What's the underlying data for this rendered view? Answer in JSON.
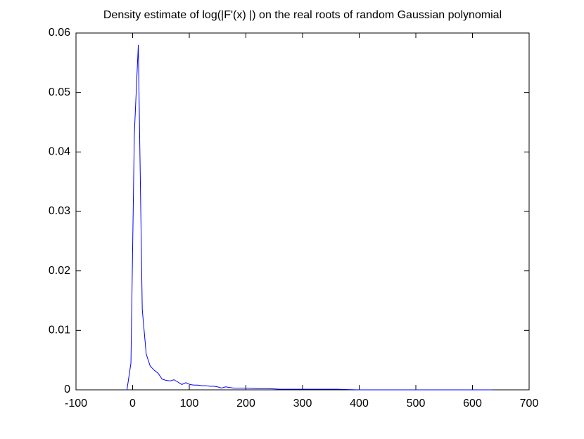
{
  "chart_data": {
    "type": "line",
    "title": "Density estimate of log(|F'(x) |) on the real roots of random Gaussian polynomial",
    "x": [
      -10,
      -3,
      3,
      10,
      17,
      24,
      31,
      38,
      45,
      52,
      59,
      66,
      73,
      80,
      87,
      94,
      101,
      108,
      115,
      122,
      129,
      136,
      143,
      150,
      157,
      164,
      171,
      178,
      185,
      200,
      220,
      240,
      260,
      280,
      300,
      330,
      360,
      400,
      450,
      500,
      550,
      600,
      635
    ],
    "series": [
      {
        "color": "#0000ff",
        "values": [
          0,
          0.0045,
          0.043,
          0.058,
          0.0135,
          0.006,
          0.004,
          0.0033,
          0.0028,
          0.0018,
          0.0016,
          0.0015,
          0.0017,
          0.0013,
          0.0009,
          0.0012,
          0.0009,
          0.0008,
          0.0008,
          0.0007,
          0.0007,
          0.0006,
          0.0006,
          0.0005,
          0.0003,
          0.0005,
          0.0004,
          0.0003,
          0.0003,
          0.0003,
          0.0002,
          0.0002,
          0.0001,
          0.0001,
          0.0001,
          0.0001,
          0.0001,
          0,
          0,
          0,
          0,
          0,
          0
        ]
      }
    ],
    "xlim": [
      -100,
      700
    ],
    "xticks": [
      -100,
      0,
      100,
      200,
      300,
      400,
      500,
      600,
      700
    ],
    "ylim": [
      0,
      0.06
    ],
    "yticks": [
      0,
      0.01,
      0.02,
      0.03,
      0.04,
      0.05,
      0.06
    ]
  }
}
